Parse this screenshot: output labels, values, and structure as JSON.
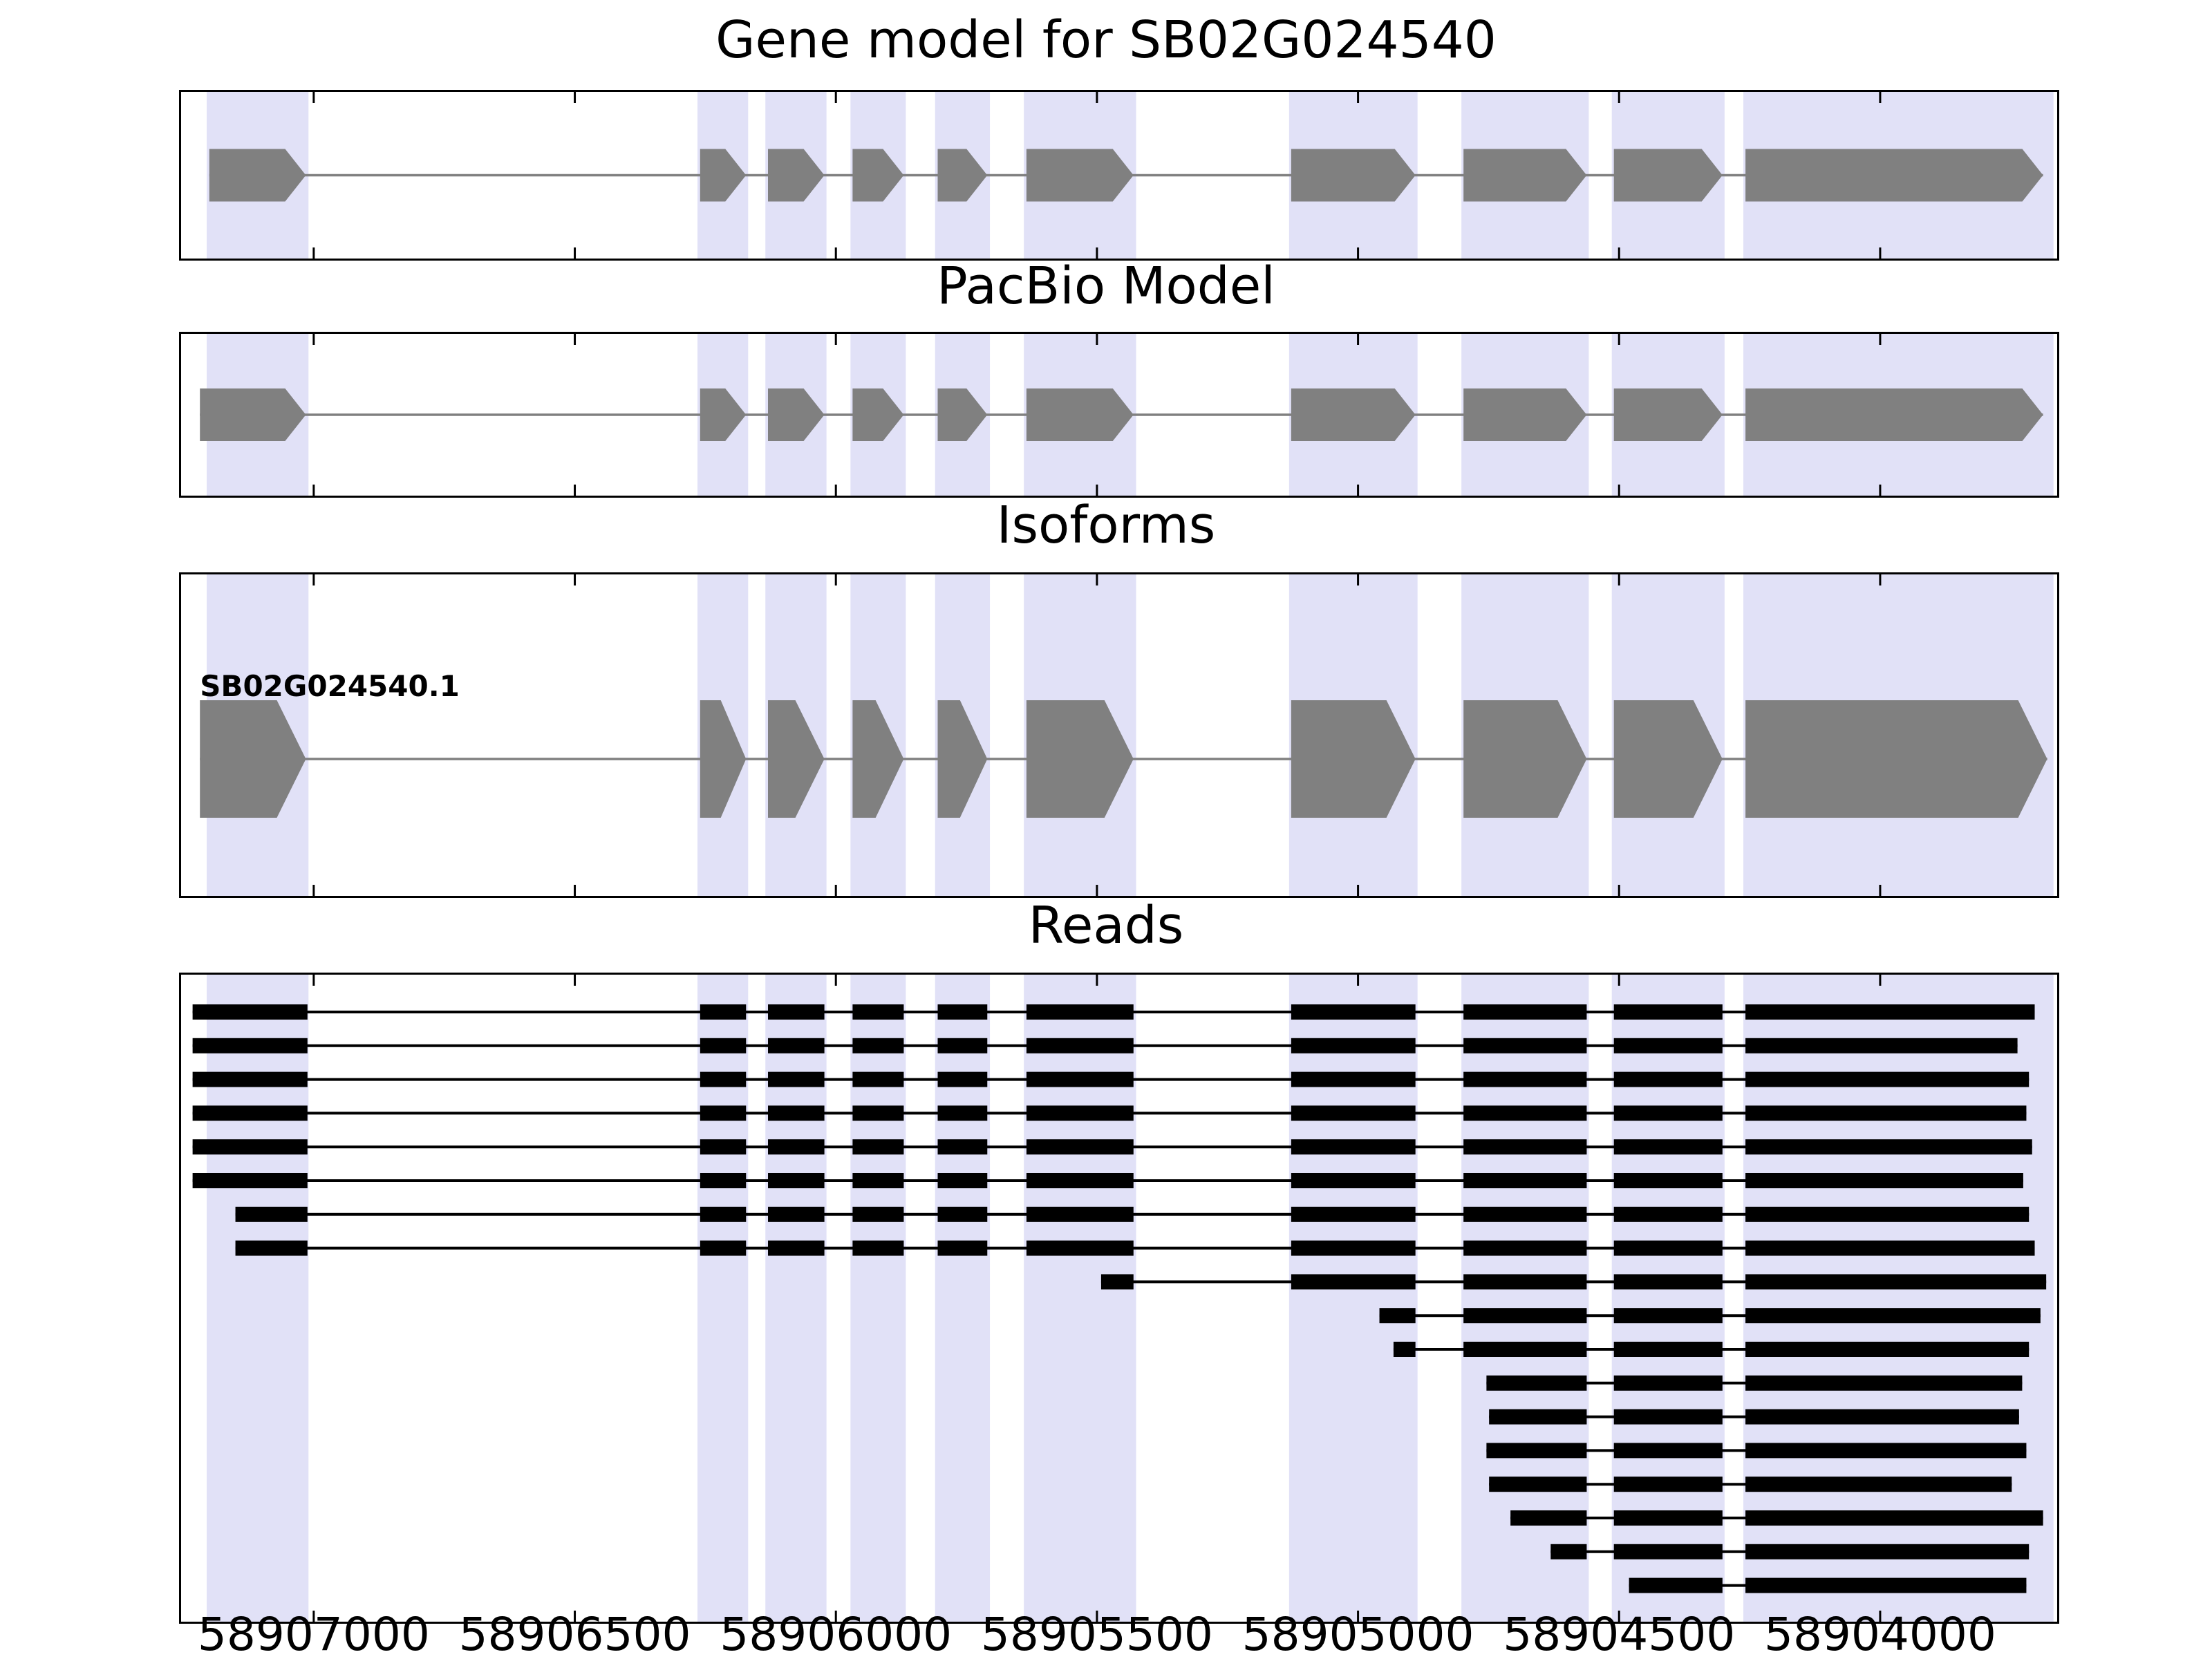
{
  "figure": {
    "background": "#ffffff",
    "panel_titles": [
      "Gene model for SB02G024540",
      "PacBio Model",
      "Isoforms",
      "Reads"
    ]
  },
  "chart_data": {
    "type": "gene-structure-tracks",
    "x_axis": {
      "xlim": [
        58907254,
        58903661
      ],
      "reversed": true,
      "ticks": [
        58907000,
        58906500,
        58906000,
        58905500,
        58905000,
        58904500,
        58904000
      ],
      "tick_labels": [
        "58907000",
        "58906500",
        "58906000",
        "58905500",
        "58905000",
        "58904500",
        "58904000"
      ]
    },
    "colors": {
      "exon": "#808080",
      "intron_line": "#808080",
      "read": "#000000",
      "highlight_band": "#e1e1f7",
      "panel_border": "#000000",
      "tick": "#000000",
      "text": "#000000"
    },
    "highlight_regions": [
      [
        58907205,
        58907010
      ],
      [
        58906265,
        58906168
      ],
      [
        58906135,
        58906018
      ],
      [
        58905972,
        58905866
      ],
      [
        58905810,
        58905705
      ],
      [
        58905640,
        58905425
      ],
      [
        58905132,
        58904886
      ],
      [
        58904802,
        58904558
      ],
      [
        58904514,
        58904298
      ],
      [
        58904262,
        58903668
      ]
    ],
    "tracks": {
      "gene_model": {
        "title": "Gene model for SB02G024540",
        "exons": [
          [
            58907200,
            58907015
          ],
          [
            58906260,
            58906172
          ],
          [
            58906130,
            58906022
          ],
          [
            58905968,
            58905870
          ],
          [
            58905805,
            58905710
          ],
          [
            58905635,
            58905430
          ],
          [
            58905128,
            58904890
          ],
          [
            58904798,
            58904562
          ],
          [
            58904510,
            58904302
          ],
          [
            58904258,
            58903688
          ]
        ]
      },
      "pacbio_model": {
        "title": "PacBio Model",
        "exons": [
          [
            58907218,
            58907015
          ],
          [
            58906260,
            58906172
          ],
          [
            58906130,
            58906022
          ],
          [
            58905968,
            58905870
          ],
          [
            58905805,
            58905710
          ],
          [
            58905635,
            58905430
          ],
          [
            58905128,
            58904890
          ],
          [
            58904798,
            58904562
          ],
          [
            58904510,
            58904302
          ],
          [
            58904258,
            58903688
          ]
        ]
      },
      "isoforms": {
        "title": "Isoforms",
        "isoforms": [
          {
            "label": "SB02G024540.1",
            "exons": [
              [
                58907218,
                58907015
              ],
              [
                58906260,
                58906172
              ],
              [
                58906130,
                58906022
              ],
              [
                58905968,
                58905870
              ],
              [
                58905805,
                58905710
              ],
              [
                58905635,
                58905430
              ],
              [
                58905128,
                58904890
              ],
              [
                58904798,
                58904562
              ],
              [
                58904510,
                58904302
              ],
              [
                58904258,
                58903680
              ]
            ]
          }
        ]
      },
      "reads": {
        "title": "Reads",
        "count": 18,
        "exon_template": [
          [
            58907235,
            58907012
          ],
          [
            58906260,
            58906172
          ],
          [
            58906130,
            58906022
          ],
          [
            58905968,
            58905870
          ],
          [
            58905805,
            58905710
          ],
          [
            58905635,
            58905430
          ],
          [
            58905128,
            58904890
          ],
          [
            58904798,
            58904562
          ],
          [
            58904510,
            58904302
          ],
          [
            58904258,
            58903650
          ]
        ],
        "reads": [
          [
            58907232,
            58903704
          ],
          [
            58907232,
            58903737
          ],
          [
            58907232,
            58903715
          ],
          [
            58907232,
            58903720
          ],
          [
            58907232,
            58903709
          ],
          [
            58907232,
            58903726
          ],
          [
            58907150,
            58903715
          ],
          [
            58907150,
            58903704
          ],
          [
            58905492,
            58903682
          ],
          [
            58904959,
            58903693
          ],
          [
            58904932,
            58903715
          ],
          [
            58904754,
            58903728
          ],
          [
            58904749,
            58903734
          ],
          [
            58904754,
            58903720
          ],
          [
            58904749,
            58903748
          ],
          [
            58904708,
            58903688
          ],
          [
            58904631,
            58903715
          ],
          [
            58904481,
            58903720
          ]
        ]
      }
    }
  }
}
